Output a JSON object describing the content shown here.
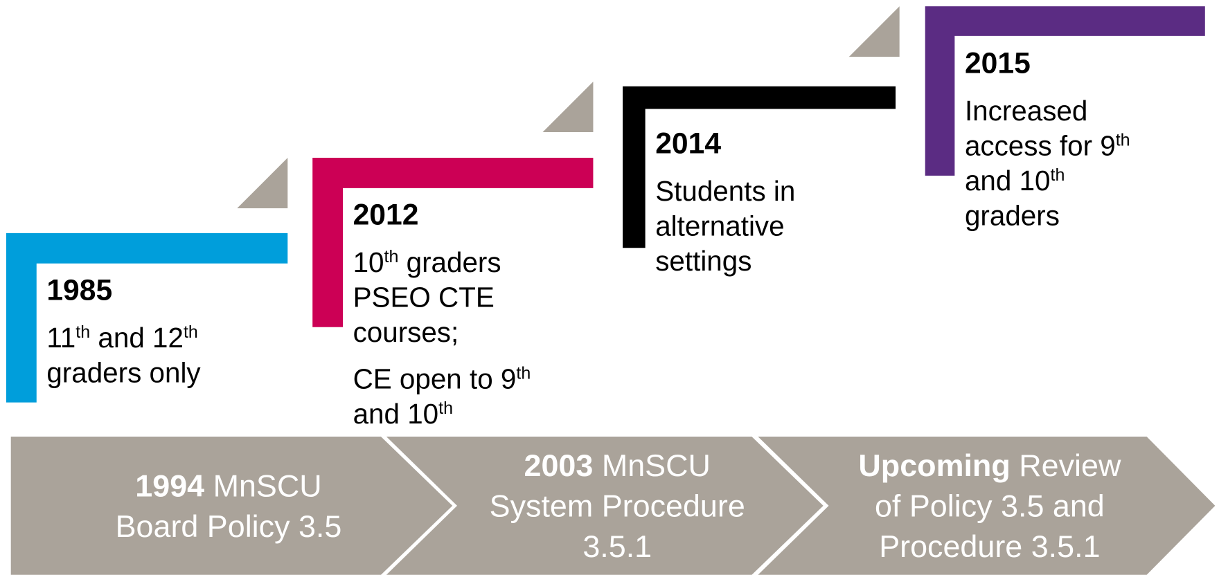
{
  "steps": [
    {
      "year": "1985",
      "color": "#009edb",
      "paragraphs": [
        [
          [
            "11",
            {
              "sup": "th"
            },
            "  and 12",
            {
              "sup": "th"
            }
          ],
          [
            "graders only"
          ]
        ]
      ]
    },
    {
      "year": "2012",
      "color": "#cc0055",
      "paragraphs": [
        [
          [
            "10",
            {
              "sup": "th"
            },
            " graders"
          ],
          [
            "PSEO CTE"
          ],
          [
            "courses;"
          ]
        ],
        [
          [
            "CE open to 9",
            {
              "sup": "th"
            }
          ],
          [
            "and 10",
            {
              "sup": "th"
            }
          ]
        ]
      ]
    },
    {
      "year": "2014",
      "color": "#000000",
      "paragraphs": [
        [
          [
            "Students in"
          ],
          [
            "alternative"
          ],
          [
            "settings"
          ]
        ]
      ]
    },
    {
      "year": "2015",
      "color": "#5b2c83",
      "paragraphs": [
        [
          [
            "Increased"
          ],
          [
            "access for 9",
            {
              "sup": "th"
            }
          ],
          [
            "and 10",
            {
              "sup": "th"
            }
          ],
          [
            "graders"
          ]
        ]
      ]
    }
  ],
  "arrows": [
    {
      "lines": [
        [
          {
            "bold": "1994"
          },
          " MnSCU"
        ],
        [
          "Board Policy 3.5"
        ]
      ]
    },
    {
      "lines": [
        [
          {
            "bold": "2003"
          },
          " MnSCU"
        ],
        [
          "System Procedure"
        ],
        [
          "3.5.1"
        ]
      ]
    },
    {
      "lines": [
        [
          {
            "bold": "Upcoming"
          },
          " Review"
        ],
        [
          "of Policy 3.5 and"
        ],
        [
          "Procedure 3.5.1"
        ]
      ]
    }
  ]
}
